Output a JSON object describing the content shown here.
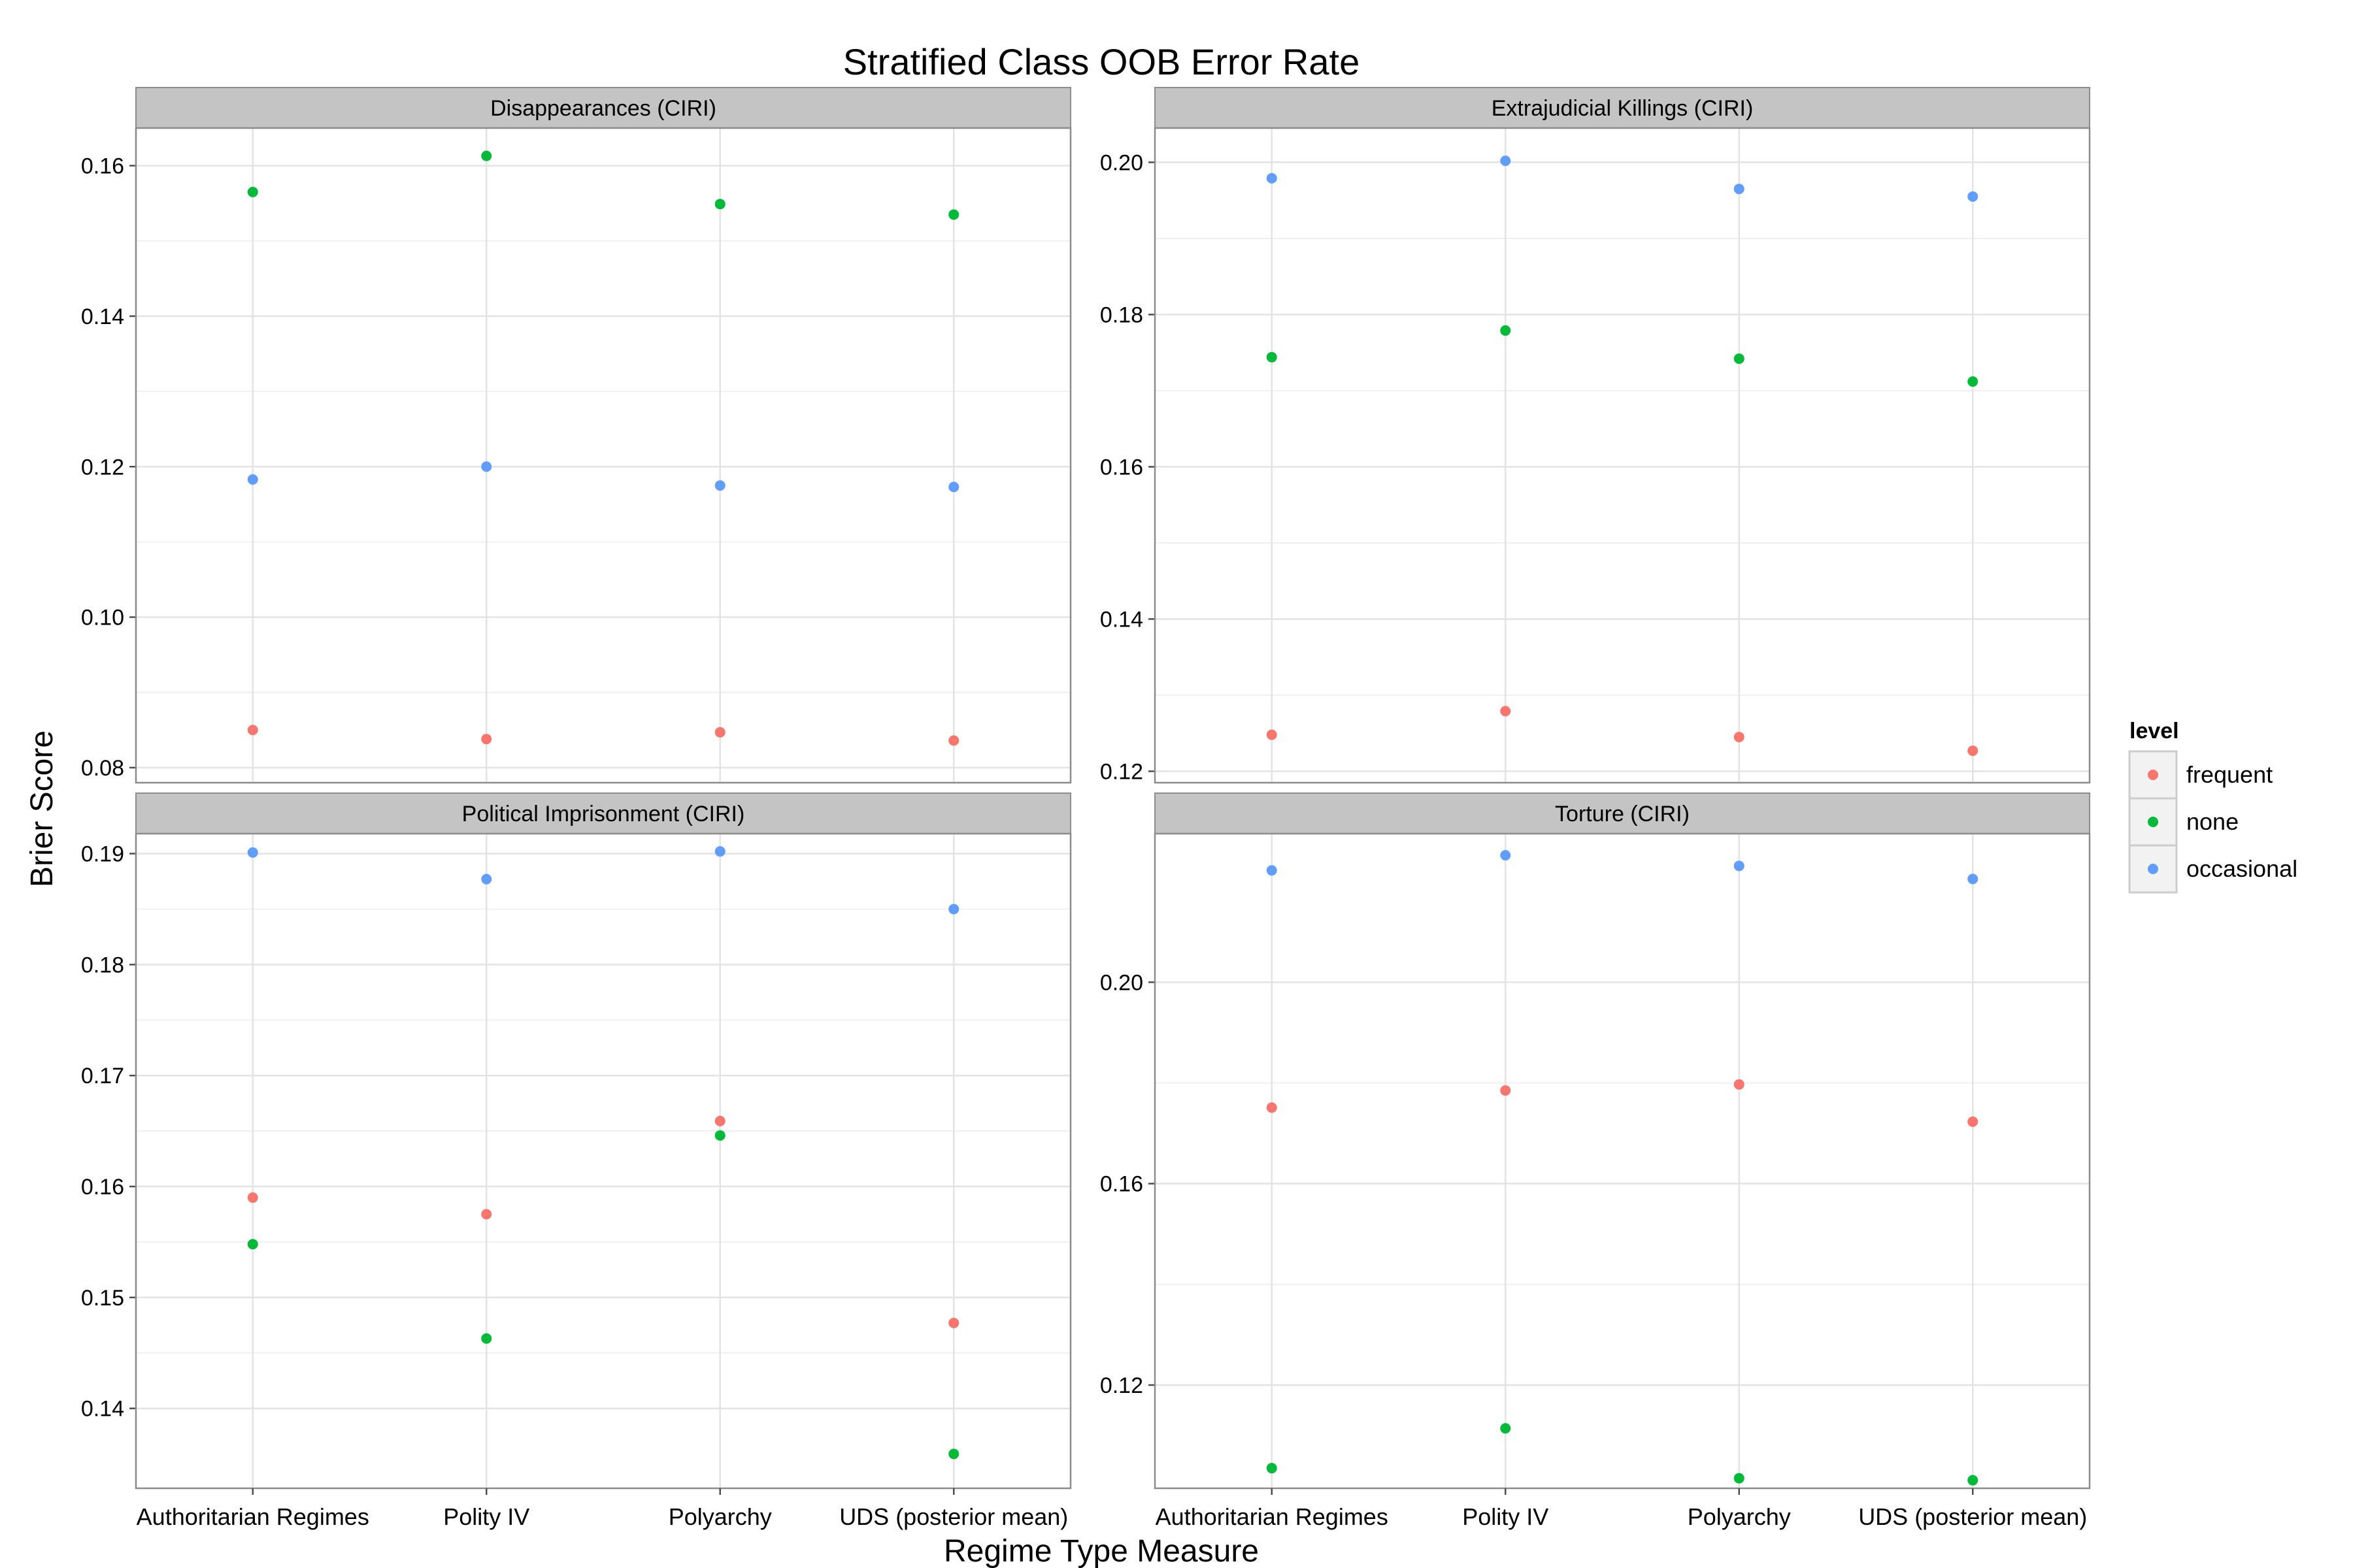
{
  "title": "Stratified Class OOB Error Rate",
  "xlabel": "Regime Type Measure",
  "ylabel": "Brier Score",
  "legend": {
    "title": "level",
    "entries": [
      {
        "label": "frequent",
        "color": "#F8766D"
      },
      {
        "label": "none",
        "color": "#00BA38"
      },
      {
        "label": "occasional",
        "color": "#619CFF"
      }
    ]
  },
  "chart_data": [
    {
      "type": "scatter",
      "title": "Disappearances (CIRI)",
      "categories": [
        "Authoritarian Regimes",
        "Polity IV",
        "Polyarchy",
        "UDS (posterior mean)"
      ],
      "ylim": [
        0.078,
        0.165
      ],
      "yticks": [
        0.08,
        0.1,
        0.12,
        0.14,
        0.16
      ],
      "ytick_labels": [
        "0.08",
        "0.10",
        "0.12",
        "0.14",
        "0.16"
      ],
      "series": [
        {
          "name": "frequent",
          "values": [
            0.085,
            0.0838,
            0.0847,
            0.0836
          ]
        },
        {
          "name": "none",
          "values": [
            0.1565,
            0.1613,
            0.1549,
            0.1535
          ]
        },
        {
          "name": "occasional",
          "values": [
            0.1183,
            0.12,
            0.1175,
            0.1173
          ]
        }
      ]
    },
    {
      "type": "scatter",
      "title": "Extrajudicial Killings (CIRI)",
      "categories": [
        "Authoritarian Regimes",
        "Polity IV",
        "Polyarchy",
        "UDS (posterior mean)"
      ],
      "ylim": [
        0.1185,
        0.2045
      ],
      "yticks": [
        0.12,
        0.14,
        0.16,
        0.18,
        0.2
      ],
      "ytick_labels": [
        "0.12",
        "0.14",
        "0.16",
        "0.18",
        "0.20"
      ],
      "series": [
        {
          "name": "frequent",
          "values": [
            0.1248,
            0.1279,
            0.1245,
            0.1227
          ]
        },
        {
          "name": "none",
          "values": [
            0.1744,
            0.1779,
            0.1742,
            0.1712
          ]
        },
        {
          "name": "occasional",
          "values": [
            0.1979,
            0.2002,
            0.1965,
            0.1955
          ]
        }
      ]
    },
    {
      "type": "scatter",
      "title": "Political Imprisonment (CIRI)",
      "categories": [
        "Authoritarian Regimes",
        "Polity IV",
        "Polyarchy",
        "UDS (posterior mean)"
      ],
      "ylim": [
        0.1328,
        0.1918
      ],
      "yticks": [
        0.14,
        0.15,
        0.16,
        0.17,
        0.18,
        0.19
      ],
      "ytick_labels": [
        "0.14",
        "0.15",
        "0.16",
        "0.17",
        "0.18",
        "0.19"
      ],
      "series": [
        {
          "name": "frequent",
          "values": [
            0.159,
            0.1575,
            0.1659,
            0.1477
          ]
        },
        {
          "name": "none",
          "values": [
            0.1548,
            0.1463,
            0.1646,
            0.1359
          ]
        },
        {
          "name": "occasional",
          "values": [
            0.1901,
            0.1877,
            0.1902,
            0.185
          ]
        }
      ]
    },
    {
      "type": "scatter",
      "title": "Torture (CIRI)",
      "categories": [
        "Authoritarian Regimes",
        "Polity IV",
        "Polyarchy",
        "UDS (posterior mean)"
      ],
      "ylim": [
        0.0995,
        0.2295
      ],
      "yticks": [
        0.12,
        0.16,
        0.2
      ],
      "ytick_labels": [
        "0.12",
        "0.16",
        "0.20"
      ],
      "series": [
        {
          "name": "frequent",
          "values": [
            0.1751,
            0.1785,
            0.1797,
            0.1723
          ]
        },
        {
          "name": "none",
          "values": [
            0.1035,
            0.1114,
            0.1015,
            0.1011
          ]
        },
        {
          "name": "occasional",
          "values": [
            0.2222,
            0.2252,
            0.2231,
            0.2205
          ]
        }
      ]
    }
  ]
}
